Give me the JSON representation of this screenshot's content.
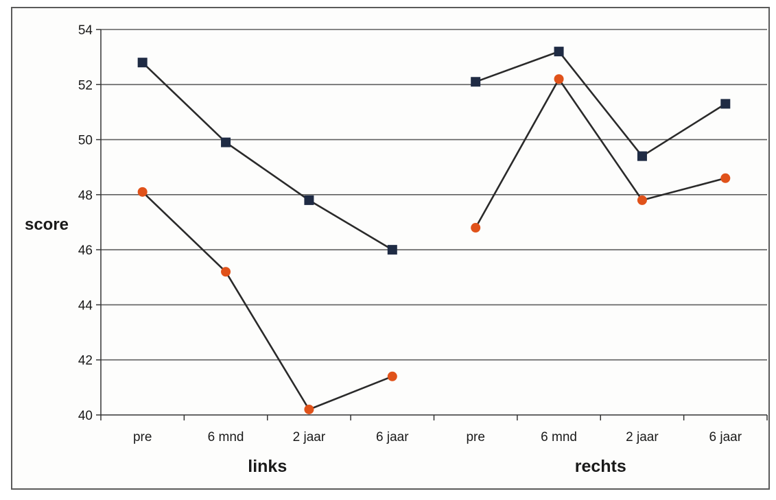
{
  "chart_data": {
    "type": "line",
    "ylabel": "score",
    "ylim": [
      40,
      54
    ],
    "yticks": [
      40,
      42,
      44,
      46,
      48,
      50,
      52,
      54
    ],
    "grid": true,
    "categories": [
      "pre",
      "6 mnd",
      "2 jaar",
      "6 jaar",
      "pre",
      "6 mnd",
      "2 jaar",
      "6 jaar"
    ],
    "groups": [
      {
        "label": "links",
        "category_indices": [
          0,
          1,
          2,
          3
        ]
      },
      {
        "label": "rechts",
        "category_indices": [
          4,
          5,
          6,
          7
        ]
      }
    ],
    "series": [
      {
        "marker": "square",
        "color": "#1f2b44",
        "values": [
          52.8,
          49.9,
          47.8,
          46.0,
          52.1,
          53.2,
          49.4,
          51.3
        ]
      },
      {
        "marker": "circle",
        "color": "#e0521a",
        "values": [
          48.1,
          45.2,
          40.2,
          41.4,
          46.8,
          52.2,
          47.8,
          48.6
        ]
      }
    ],
    "line_color": "#2a2a2a",
    "grid_color": "#5f5f5f"
  }
}
